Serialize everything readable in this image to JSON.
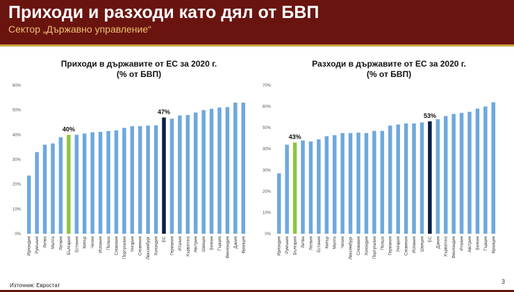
{
  "header": {
    "title": "Приходи и разходи като дял от БВП",
    "subtitle": "Сектор „Държавно управление“"
  },
  "footer": {
    "source": "Източник: Евростат",
    "page_number": "3"
  },
  "colors": {
    "bar": "#6fa8dc",
    "bulgaria": "#8dc63f",
    "eu": "#0b1f44",
    "header_bg": "#6a1410",
    "subtitle": "#f0c070"
  },
  "chart_data": [
    {
      "type": "bar",
      "title_line1": "Приходи в държавите от ЕС за 2020 г.",
      "title_line2": "(% от БВП)",
      "ylim": [
        0,
        60
      ],
      "yticks": [
        "0%",
        "10%",
        "20%",
        "30%",
        "40%",
        "50%",
        "60%"
      ],
      "categories": [
        "Ирландия",
        "Румъния",
        "Литва",
        "Малта",
        "Латвия",
        "България",
        "Естония",
        "Кипър",
        "Чехия",
        "Испания",
        "Полша",
        "Словакия",
        "Португалия",
        "Унгария",
        "Словения",
        "Люксембург",
        "Холандия",
        "ЕС",
        "Германия",
        "Италия",
        "Хърватска",
        "Австрия",
        "Швеция",
        "Белгия",
        "Гърция",
        "Финландия",
        "Дания",
        "Франция"
      ],
      "values": [
        23.5,
        33,
        36,
        36.5,
        39,
        40,
        40,
        40.5,
        41,
        41.2,
        41.5,
        41.8,
        42.8,
        43.5,
        43.5,
        43.7,
        43.8,
        47,
        46.5,
        47.8,
        48,
        49,
        50,
        50.5,
        51,
        51.2,
        53,
        53
      ],
      "highlights": {
        "България": "40%",
        "ЕС": "47%"
      }
    },
    {
      "type": "bar",
      "title_line1": "Разходи в държавите от ЕС за 2020 г.",
      "title_line2": "(% от БВП)",
      "ylim": [
        0,
        70
      ],
      "yticks": [
        "0%",
        "10%",
        "20%",
        "30%",
        "40%",
        "50%",
        "60%",
        "70%"
      ],
      "categories": [
        "Ирландия",
        "Румъния",
        "България",
        "Литва",
        "Латвия",
        "Естония",
        "Кипър",
        "Малта",
        "Чехия",
        "Люксембург",
        "Словакия",
        "Холандия",
        "Португалия",
        "Полша",
        "Германия",
        "Унгария",
        "Словения",
        "Испания",
        "Швеция",
        "ЕС",
        "Дания",
        "Хърватска",
        "Финландия",
        "Италия",
        "Австрия",
        "Белгия",
        "Гърция",
        "Франция"
      ],
      "values": [
        28.5,
        42,
        43,
        44,
        43.5,
        44.5,
        46,
        46.5,
        47.5,
        47.5,
        47.7,
        47.5,
        48.5,
        48.5,
        51,
        51.5,
        52,
        52,
        52.5,
        53,
        54,
        55.5,
        56.5,
        57,
        57.5,
        59,
        60,
        62
      ],
      "highlights": {
        "България": "43%",
        "ЕС": "53%"
      }
    }
  ]
}
